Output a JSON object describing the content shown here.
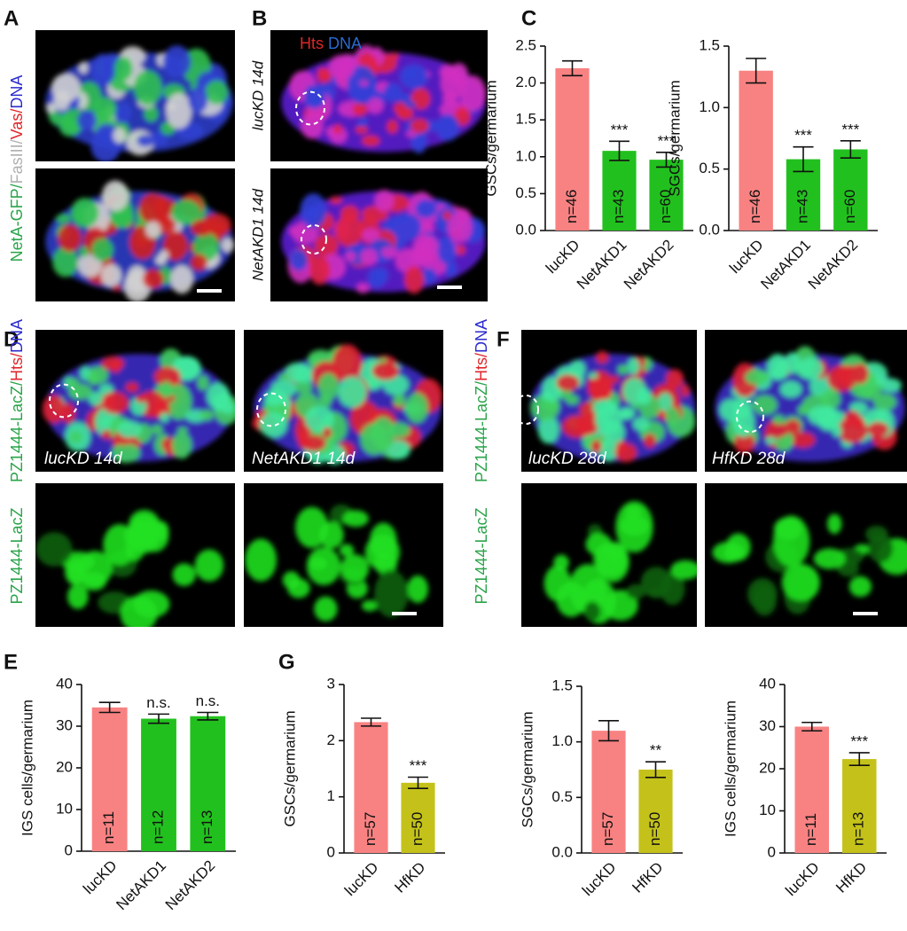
{
  "panels": {
    "A": {
      "letter": "A",
      "stain": [
        {
          "text": "NetA-GFP/",
          "color": "#2aa44a"
        },
        {
          "text": "FasIII/",
          "color": "#b0b0b0"
        },
        {
          "text": "Vas/",
          "color": "#e0262a"
        },
        {
          "text": "DNA",
          "color": "#2a2ad0"
        }
      ]
    },
    "B": {
      "letter": "B",
      "stain": [
        {
          "text": "Hts",
          "color": "#e0262a"
        },
        {
          "text": "DNA",
          "color": "#2a6ad0"
        }
      ],
      "rows": [
        "lucKD 14d",
        "NetAKD1 14d"
      ]
    },
    "C": {
      "letter": "C"
    },
    "D": {
      "letter": "D",
      "stain": [
        {
          "text": "PZ1444-LacZ/",
          "color": "#2aa44a"
        },
        {
          "text": "Hts/",
          "color": "#e0262a"
        },
        {
          "text": "DNA",
          "color": "#2a2ad0"
        }
      ],
      "stain2": "PZ1444-LacZ",
      "cols": [
        "lucKD 14d",
        "NetAKD1 14d"
      ]
    },
    "E": {
      "letter": "E"
    },
    "F": {
      "letter": "F",
      "stain": [
        {
          "text": "PZ1444-LacZ/",
          "color": "#2aa44a"
        },
        {
          "text": "Hts/",
          "color": "#e0262a"
        },
        {
          "text": "DNA",
          "color": "#2a2ad0"
        }
      ],
      "stain2": "PZ1444-LacZ",
      "cols": [
        "lucKD 28d",
        "HfKD 28d"
      ]
    },
    "G": {
      "letter": "G"
    }
  },
  "chart_data": [
    {
      "type": "bar",
      "ylabel": "GSCs/germarium",
      "categories": [
        "lucKD",
        "NetAKD1",
        "NetAKD2"
      ],
      "values": [
        2.2,
        1.08,
        0.96
      ],
      "errors": [
        0.1,
        0.13,
        0.1
      ],
      "colors": [
        "#f88282",
        "#22c01e",
        "#22c01e"
      ],
      "n_labels": [
        "n=46",
        "n=43",
        "n=60"
      ],
      "significance": [
        null,
        "***",
        "***"
      ],
      "ylim": [
        0,
        2.5
      ],
      "yticks": [
        {
          "value": 0,
          "label": "0.0"
        },
        0.5,
        {
          "value": 1,
          "label": "1.0"
        },
        1.5,
        {
          "value": 2,
          "label": "2.0"
        },
        2.5
      ]
    },
    {
      "type": "bar",
      "ylabel": "SGCs/germarium",
      "categories": [
        "lucKD",
        "NetAKD1",
        "NetAKD2"
      ],
      "values": [
        1.3,
        0.58,
        0.66
      ],
      "errors": [
        0.1,
        0.1,
        0.07
      ],
      "colors": [
        "#f88282",
        "#22c01e",
        "#22c01e"
      ],
      "n_labels": [
        "n=46",
        "n=43",
        "n=60"
      ],
      "significance": [
        null,
        "***",
        "***"
      ],
      "ylim": [
        0,
        1.5
      ],
      "yticks": [
        {
          "value": 0,
          "label": "0.0"
        },
        0.5,
        {
          "value": 1,
          "label": "1.0"
        },
        1.5
      ]
    },
    {
      "type": "bar",
      "ylabel": "IGS cells/germarium",
      "categories": [
        "lucKD",
        "NetAKD1",
        "NetAKD2"
      ],
      "values": [
        34.5,
        31.8,
        32.4
      ],
      "errors": [
        1.2,
        1.1,
        0.9
      ],
      "colors": [
        "#f88282",
        "#22c01e",
        "#22c01e"
      ],
      "n_labels": [
        "n=11",
        "n=12",
        "n=13"
      ],
      "significance": [
        null,
        "n.s.",
        "n.s."
      ],
      "ylim": [
        0,
        40
      ],
      "yticks": [
        0,
        10,
        20,
        30,
        40
      ]
    },
    {
      "type": "bar",
      "ylabel": "GSCs/germarium",
      "categories": [
        "lucKD",
        "HfKD"
      ],
      "values": [
        2.33,
        1.25
      ],
      "errors": [
        0.07,
        0.1
      ],
      "colors": [
        "#f88282",
        "#c4c21a"
      ],
      "n_labels": [
        "n=57",
        "n=50"
      ],
      "significance": [
        null,
        "***"
      ],
      "ylim": [
        0,
        3
      ],
      "yticks": [
        0,
        1,
        2,
        3
      ]
    },
    {
      "type": "bar",
      "ylabel": "SGCs/germarium",
      "categories": [
        "lucKD",
        "HfKD"
      ],
      "values": [
        1.1,
        0.75
      ],
      "errors": [
        0.09,
        0.07
      ],
      "colors": [
        "#f88282",
        "#c4c21a"
      ],
      "n_labels": [
        "n=57",
        "n=50"
      ],
      "significance": [
        null,
        "**"
      ],
      "ylim": [
        0,
        1.5
      ],
      "yticks": [
        {
          "value": 0,
          "label": "0.0"
        },
        0.5,
        {
          "value": 1,
          "label": "1.0"
        },
        1.5
      ]
    },
    {
      "type": "bar",
      "ylabel": "IGS cells/germarium",
      "categories": [
        "lucKD",
        "HfKD"
      ],
      "values": [
        30,
        22.3
      ],
      "errors": [
        1,
        1.5
      ],
      "colors": [
        "#f88282",
        "#c4c21a"
      ],
      "n_labels": [
        "n=11",
        "n=13"
      ],
      "significance": [
        null,
        "***"
      ],
      "ylim": [
        0,
        40
      ],
      "yticks": [
        0,
        10,
        20,
        30,
        40
      ]
    }
  ]
}
